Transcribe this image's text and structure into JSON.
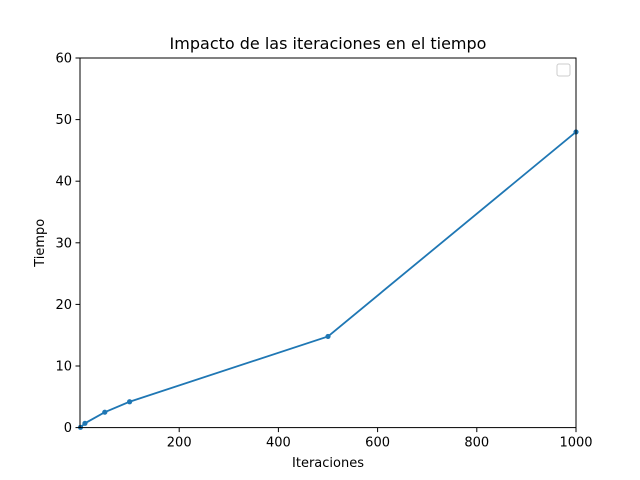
{
  "chart_data": {
    "type": "line",
    "title": "Impacto de las iteraciones en el tiempo",
    "xlabel": "Iteraciones",
    "ylabel": "Tiempo",
    "xlim": [
      0,
      1000
    ],
    "ylim": [
      0,
      60
    ],
    "xticks": [
      "200",
      "400",
      "600",
      "800",
      "1000"
    ],
    "yticks": [
      "0",
      "10",
      "20",
      "30",
      "40",
      "50",
      "60"
    ],
    "grid": false,
    "legend_position": "top-right",
    "series": [
      {
        "color": "#1f77b4",
        "x": [
          1,
          10,
          50,
          100,
          500,
          1000
        ],
        "y": [
          0.05,
          0.7,
          2.5,
          4.2,
          14.8,
          48.0
        ]
      }
    ]
  }
}
